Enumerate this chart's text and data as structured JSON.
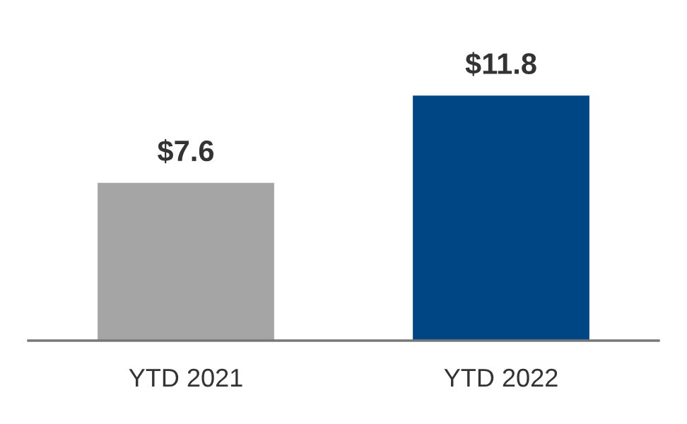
{
  "chart_data": {
    "type": "bar",
    "categories": [
      "YTD 2021",
      "YTD 2022"
    ],
    "values": [
      7.6,
      11.8
    ],
    "colors": [
      "#a5a5a5",
      "#004684"
    ],
    "value_labels": [
      "$7.6",
      "$11.8"
    ],
    "tick_labels": "x",
    "grid": false,
    "legend": false
  }
}
